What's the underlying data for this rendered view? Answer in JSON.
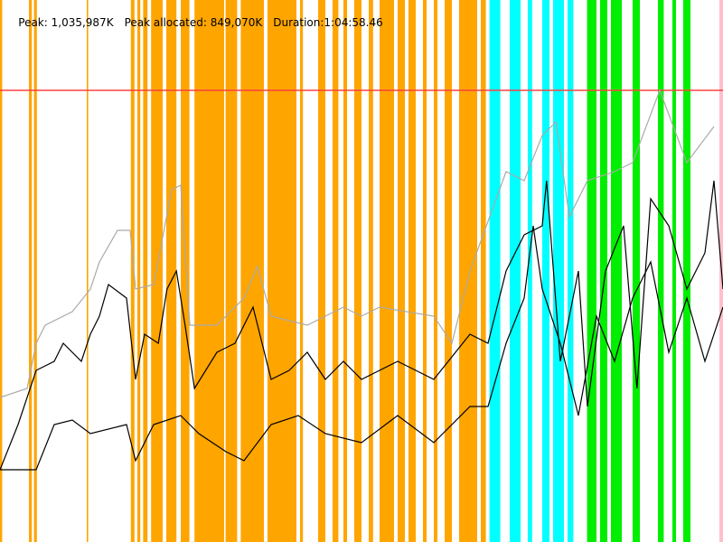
{
  "header": {
    "peak": "Peak: 1,035,987K",
    "peak_allocated": "Peak allocated: 849,070K",
    "duration": "Duration:1:04:58.46"
  },
  "chart_data": {
    "type": "line",
    "xlim": [
      0,
      1
    ],
    "ylim": [
      0,
      1.2
    ],
    "grid": false,
    "peak_line": {
      "value": 1.0,
      "color": "#ff4040"
    },
    "bands": [
      {
        "color": "#ffa500",
        "ranges": [
          [
            0,
            0.003
          ],
          [
            0.04,
            0.044
          ],
          [
            0.047,
            0.051
          ],
          [
            0.12,
            0.122
          ],
          [
            0.181,
            0.186
          ],
          [
            0.19,
            0.194
          ],
          [
            0.198,
            0.204
          ],
          [
            0.209,
            0.225
          ],
          [
            0.23,
            0.244
          ],
          [
            0.25,
            0.262
          ],
          [
            0.269,
            0.31
          ],
          [
            0.312,
            0.328
          ],
          [
            0.333,
            0.365
          ],
          [
            0.37,
            0.41
          ],
          [
            0.415,
            0.419
          ],
          [
            0.44,
            0.45
          ],
          [
            0.46,
            0.468
          ],
          [
            0.475,
            0.48
          ],
          [
            0.49,
            0.5
          ],
          [
            0.51,
            0.516
          ],
          [
            0.525,
            0.545
          ],
          [
            0.55,
            0.56
          ],
          [
            0.565,
            0.575
          ],
          [
            0.585,
            0.59
          ],
          [
            0.6,
            0.605
          ],
          [
            0.615,
            0.625
          ],
          [
            0.635,
            0.66
          ],
          [
            0.665,
            0.672
          ]
        ]
      },
      {
        "color": "#00ffff",
        "ranges": [
          [
            0.677,
            0.692
          ],
          [
            0.705,
            0.72
          ],
          [
            0.73,
            0.736
          ],
          [
            0.75,
            0.76
          ],
          [
            0.765,
            0.78
          ],
          [
            0.785,
            0.793
          ]
        ]
      },
      {
        "color": "#00ee00",
        "ranges": [
          [
            0.812,
            0.825
          ],
          [
            0.83,
            0.84
          ],
          [
            0.845,
            0.86
          ],
          [
            0.875,
            0.885
          ],
          [
            0.91,
            0.918
          ],
          [
            0.93,
            0.935
          ],
          [
            0.945,
            0.955
          ]
        ]
      },
      {
        "color": "#ffc0cb",
        "ranges": [
          [
            0.995,
            1
          ]
        ]
      }
    ],
    "series": [
      {
        "color": "#aaaaaa",
        "x": [
          0,
          0.0375,
          0.05,
          0.0625,
          0.1,
          0.125,
          0.1375,
          0.1625,
          0.18,
          0.1875,
          0.2125,
          0.2375,
          0.25,
          0.2625,
          0.3,
          0.3375,
          0.356,
          0.375,
          0.425,
          0.475,
          0.5,
          0.525,
          0.6,
          0.625,
          0.65,
          0.7,
          0.725,
          0.75,
          0.769,
          0.7875,
          0.8125,
          0.85,
          0.875,
          0.9125,
          0.95,
          0.9875
        ],
        "y": [
          0.32,
          0.34,
          0.44,
          0.48,
          0.51,
          0.56,
          0.62,
          0.69,
          0.69,
          0.56,
          0.57,
          0.78,
          0.79,
          0.48,
          0.48,
          0.54,
          0.61,
          0.5,
          0.48,
          0.52,
          0.5,
          0.52,
          0.5,
          0.44,
          0.6,
          0.82,
          0.8,
          0.9,
          0.93,
          0.72,
          0.8,
          0.82,
          0.84,
          1.0,
          0.84,
          0.92
        ]
      },
      {
        "color": "#000000",
        "x": [
          0,
          0.025,
          0.05,
          0.075,
          0.0875,
          0.1125,
          0.125,
          0.1375,
          0.15,
          0.175,
          0.1875,
          0.2,
          0.219,
          0.231,
          0.244,
          0.256,
          0.269,
          0.3,
          0.325,
          0.35,
          0.375,
          0.4,
          0.425,
          0.45,
          0.475,
          0.5,
          0.55,
          0.6,
          0.65,
          0.675,
          0.7,
          0.725,
          0.75,
          0.756,
          0.775,
          0.8,
          0.8125,
          0.8375,
          0.8625,
          0.881,
          0.9,
          0.925,
          0.95,
          0.975,
          0.9875,
          1
        ],
        "y": [
          0.16,
          0.26,
          0.38,
          0.4,
          0.44,
          0.4,
          0.46,
          0.5,
          0.57,
          0.54,
          0.36,
          0.46,
          0.44,
          0.56,
          0.6,
          0.48,
          0.34,
          0.42,
          0.44,
          0.52,
          0.36,
          0.38,
          0.42,
          0.36,
          0.4,
          0.36,
          0.4,
          0.36,
          0.46,
          0.44,
          0.6,
          0.68,
          0.7,
          0.8,
          0.4,
          0.6,
          0.3,
          0.6,
          0.7,
          0.34,
          0.76,
          0.7,
          0.56,
          0.64,
          0.8,
          0.56
        ]
      },
      {
        "color": "#000000",
        "x": [
          0,
          0.05,
          0.075,
          0.1,
          0.125,
          0.175,
          0.1875,
          0.2125,
          0.25,
          0.275,
          0.3125,
          0.3375,
          0.375,
          0.4125,
          0.45,
          0.5,
          0.55,
          0.6,
          0.65,
          0.675,
          0.7,
          0.725,
          0.7375,
          0.75,
          0.775,
          0.8,
          0.825,
          0.85,
          0.875,
          0.9,
          0.925,
          0.95,
          0.975,
          1
        ],
        "y": [
          0.16,
          0.16,
          0.26,
          0.27,
          0.24,
          0.26,
          0.18,
          0.26,
          0.28,
          0.24,
          0.2,
          0.18,
          0.26,
          0.28,
          0.24,
          0.22,
          0.28,
          0.22,
          0.3,
          0.3,
          0.44,
          0.54,
          0.7,
          0.56,
          0.44,
          0.28,
          0.5,
          0.4,
          0.54,
          0.62,
          0.42,
          0.54,
          0.4,
          0.52
        ]
      }
    ]
  }
}
